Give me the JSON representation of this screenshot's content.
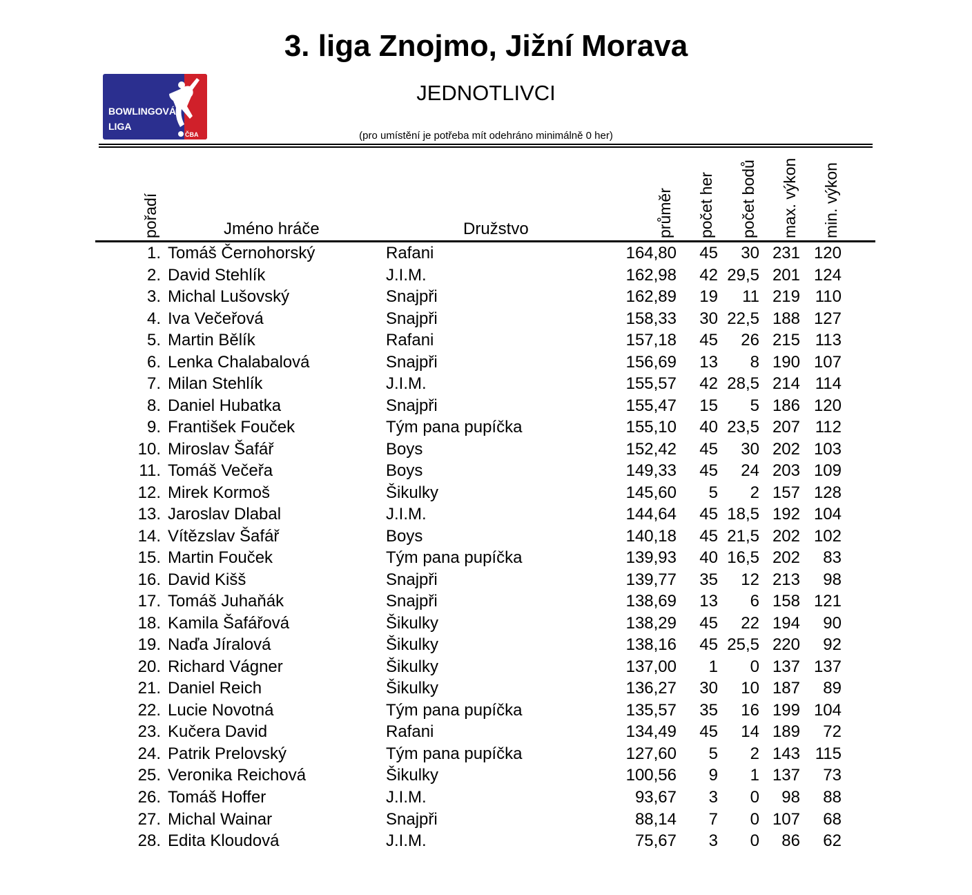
{
  "header": {
    "title": "3. liga Znojmo, Jižní Morava",
    "subtitle": "JEDNOTLIVCI",
    "note": "(pro umístění je potřeba mít odehráno minimálně 0 her)",
    "logo": {
      "text_line1": "BOWLINGOVÁ",
      "text_line2": "LIGA",
      "badge": "ČBA",
      "colors": {
        "blue": "#2b2f8f",
        "red": "#d0202a"
      }
    }
  },
  "columns": {
    "rank": "pořadí",
    "name": "Jméno hráče",
    "team": "Družstvo",
    "avg": "průměr",
    "games": "počet her",
    "points": "počet bodů",
    "max": "max. výkon",
    "min": "min. výkon"
  },
  "rows": [
    {
      "rank": "1.",
      "name": "Tomáš Černohorský",
      "team": "Rafani",
      "avg": "164,80",
      "games": "45",
      "points": "30",
      "max": "231",
      "min": "120"
    },
    {
      "rank": "2.",
      "name": "David Stehlík",
      "team": "J.I.M.",
      "avg": "162,98",
      "games": "42",
      "points": "29,5",
      "max": "201",
      "min": "124"
    },
    {
      "rank": "3.",
      "name": "Michal Lušovský",
      "team": "Snajpři",
      "avg": "162,89",
      "games": "19",
      "points": "11",
      "max": "219",
      "min": "110"
    },
    {
      "rank": "4.",
      "name": "Iva Večeřová",
      "team": "Snajpři",
      "avg": "158,33",
      "games": "30",
      "points": "22,5",
      "max": "188",
      "min": "127"
    },
    {
      "rank": "5.",
      "name": "Martin Bělík",
      "team": "Rafani",
      "avg": "157,18",
      "games": "45",
      "points": "26",
      "max": "215",
      "min": "113"
    },
    {
      "rank": "6.",
      "name": "Lenka Chalabalová",
      "team": "Snajpři",
      "avg": "156,69",
      "games": "13",
      "points": "8",
      "max": "190",
      "min": "107"
    },
    {
      "rank": "7.",
      "name": "Milan Stehlík",
      "team": "J.I.M.",
      "avg": "155,57",
      "games": "42",
      "points": "28,5",
      "max": "214",
      "min": "114"
    },
    {
      "rank": "8.",
      "name": "Daniel Hubatka",
      "team": "Snajpři",
      "avg": "155,47",
      "games": "15",
      "points": "5",
      "max": "186",
      "min": "120"
    },
    {
      "rank": "9.",
      "name": "František Fouček",
      "team": "Tým pana pupíčka",
      "avg": "155,10",
      "games": "40",
      "points": "23,5",
      "max": "207",
      "min": "112"
    },
    {
      "rank": "10.",
      "name": "Miroslav Šafář",
      "team": "Boys",
      "avg": "152,42",
      "games": "45",
      "points": "30",
      "max": "202",
      "min": "103"
    },
    {
      "rank": "11.",
      "name": "Tomáš Večeřa",
      "team": "Boys",
      "avg": "149,33",
      "games": "45",
      "points": "24",
      "max": "203",
      "min": "109"
    },
    {
      "rank": "12.",
      "name": "Mirek Kormoš",
      "team": "Šikulky",
      "avg": "145,60",
      "games": "5",
      "points": "2",
      "max": "157",
      "min": "128"
    },
    {
      "rank": "13.",
      "name": "Jaroslav Dlabal",
      "team": "J.I.M.",
      "avg": "144,64",
      "games": "45",
      "points": "18,5",
      "max": "192",
      "min": "104"
    },
    {
      "rank": "14.",
      "name": "Vítězslav Šafář",
      "team": "Boys",
      "avg": "140,18",
      "games": "45",
      "points": "21,5",
      "max": "202",
      "min": "102"
    },
    {
      "rank": "15.",
      "name": "Martin Fouček",
      "team": "Tým pana pupíčka",
      "avg": "139,93",
      "games": "40",
      "points": "16,5",
      "max": "202",
      "min": "83"
    },
    {
      "rank": "16.",
      "name": "David Kišš",
      "team": "Snajpři",
      "avg": "139,77",
      "games": "35",
      "points": "12",
      "max": "213",
      "min": "98"
    },
    {
      "rank": "17.",
      "name": "Tomáš Juhaňák",
      "team": "Snajpři",
      "avg": "138,69",
      "games": "13",
      "points": "6",
      "max": "158",
      "min": "121"
    },
    {
      "rank": "18.",
      "name": "Kamila Šafářová",
      "team": "Šikulky",
      "avg": "138,29",
      "games": "45",
      "points": "22",
      "max": "194",
      "min": "90"
    },
    {
      "rank": "19.",
      "name": "Naďa Jíralová",
      "team": "Šikulky",
      "avg": "138,16",
      "games": "45",
      "points": "25,5",
      "max": "220",
      "min": "92"
    },
    {
      "rank": "20.",
      "name": "Richard Vágner",
      "team": "Šikulky",
      "avg": "137,00",
      "games": "1",
      "points": "0",
      "max": "137",
      "min": "137"
    },
    {
      "rank": "21.",
      "name": "Daniel Reich",
      "team": "Šikulky",
      "avg": "136,27",
      "games": "30",
      "points": "10",
      "max": "187",
      "min": "89"
    },
    {
      "rank": "22.",
      "name": "Lucie Novotná",
      "team": "Tým pana pupíčka",
      "avg": "135,57",
      "games": "35",
      "points": "16",
      "max": "199",
      "min": "104"
    },
    {
      "rank": "23.",
      "name": "Kučera David",
      "team": "Rafani",
      "avg": "134,49",
      "games": "45",
      "points": "14",
      "max": "189",
      "min": "72"
    },
    {
      "rank": "24.",
      "name": "Patrik Prelovský",
      "team": "Tým pana pupíčka",
      "avg": "127,60",
      "games": "5",
      "points": "2",
      "max": "143",
      "min": "115"
    },
    {
      "rank": "25.",
      "name": "Veronika Reichová",
      "team": "Šikulky",
      "avg": "100,56",
      "games": "9",
      "points": "1",
      "max": "137",
      "min": "73"
    },
    {
      "rank": "26.",
      "name": "Tomáš Hoffer",
      "team": "J.I.M.",
      "avg": "93,67",
      "games": "3",
      "points": "0",
      "max": "98",
      "min": "88"
    },
    {
      "rank": "27.",
      "name": "Michal Wainar",
      "team": "Snajpři",
      "avg": "88,14",
      "games": "7",
      "points": "0",
      "max": "107",
      "min": "68"
    },
    {
      "rank": "28.",
      "name": "Edita Kloudová",
      "team": "J.I.M.",
      "avg": "75,67",
      "games": "3",
      "points": "0",
      "max": "86",
      "min": "62"
    }
  ]
}
